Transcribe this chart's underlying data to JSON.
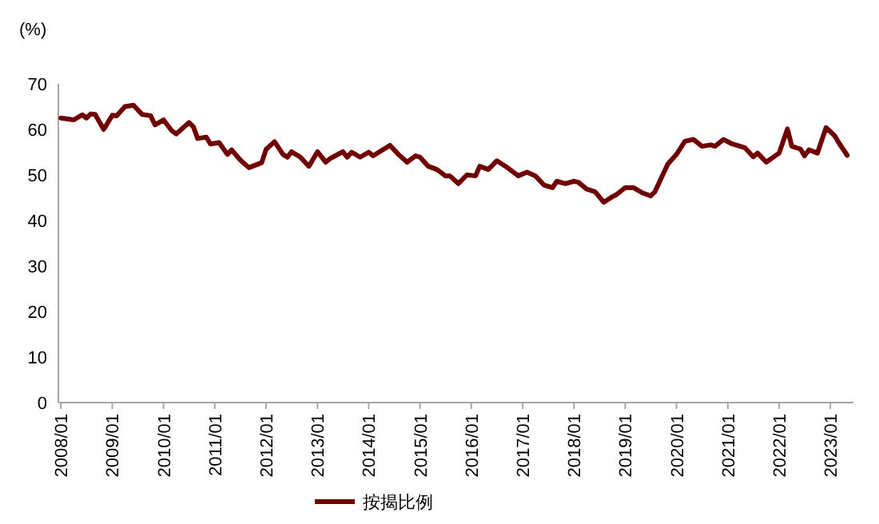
{
  "chart_data": {
    "type": "line",
    "ylabel": "(%)",
    "x": [
      "2008-01",
      "2008-04",
      "2008-06",
      "2008-07",
      "2008-08",
      "2008-09",
      "2008-11",
      "2009-01",
      "2009-02",
      "2009-04",
      "2009-06",
      "2009-08",
      "2009-10",
      "2009-11",
      "2010-01",
      "2010-03",
      "2010-04",
      "2010-07",
      "2010-08",
      "2010-09",
      "2010-11",
      "2010-12",
      "2011-02",
      "2011-04",
      "2011-05",
      "2011-07",
      "2011-09",
      "2011-12",
      "2012-01",
      "2012-03",
      "2012-05",
      "2012-06",
      "2012-07",
      "2012-09",
      "2012-11",
      "2013-01",
      "2013-03",
      "2013-04",
      "2013-07",
      "2013-08",
      "2013-09",
      "2013-11",
      "2014-01",
      "2014-02",
      "2014-06",
      "2014-08",
      "2014-10",
      "2014-12",
      "2015-01",
      "2015-03",
      "2015-05",
      "2015-07",
      "2015-08",
      "2015-10",
      "2015-12",
      "2016-02",
      "2016-03",
      "2016-05",
      "2016-07",
      "2016-09",
      "2016-12",
      "2017-02",
      "2017-04",
      "2017-06",
      "2017-08",
      "2017-09",
      "2017-11",
      "2018-01",
      "2018-02",
      "2018-04",
      "2018-06",
      "2018-08",
      "2018-10",
      "2018-11",
      "2019-01",
      "2019-03",
      "2019-05",
      "2019-07",
      "2019-08",
      "2019-10",
      "2019-11",
      "2020-01",
      "2020-03",
      "2020-05",
      "2020-07",
      "2020-09",
      "2020-10",
      "2020-12",
      "2021-02",
      "2021-05",
      "2021-07",
      "2021-08",
      "2021-10",
      "2022-01",
      "2022-03",
      "2022-04",
      "2022-06",
      "2022-07",
      "2022-08",
      "2022-10",
      "2022-12",
      "2023-02",
      "2023-03",
      "2023-05"
    ],
    "series": [
      {
        "name": "按揭比例",
        "color": "#700000",
        "values": [
          62.5,
          62.1,
          63.2,
          62.5,
          63.4,
          63.3,
          60.0,
          63.1,
          63.0,
          65.0,
          65.3,
          63.3,
          63.0,
          61.0,
          62.1,
          59.7,
          59.0,
          61.5,
          60.6,
          58.0,
          58.3,
          56.8,
          57.1,
          54.5,
          55.5,
          53.3,
          51.6,
          52.7,
          55.6,
          57.3,
          54.5,
          53.9,
          55.1,
          53.9,
          51.9,
          55.1,
          52.8,
          53.6,
          55.1,
          53.9,
          55.0,
          53.9,
          55.0,
          54.2,
          56.5,
          54.5,
          52.8,
          54.2,
          53.9,
          51.9,
          51.2,
          49.8,
          49.8,
          48.1,
          50.0,
          49.8,
          51.9,
          51.2,
          53.1,
          51.9,
          49.8,
          50.6,
          49.8,
          47.8,
          47.2,
          48.6,
          48.1,
          48.6,
          48.4,
          46.9,
          46.3,
          44.0,
          45.2,
          45.7,
          47.2,
          47.2,
          46.1,
          45.4,
          46.3,
          50.4,
          52.4,
          54.5,
          57.4,
          57.8,
          56.3,
          56.6,
          56.3,
          57.8,
          56.8,
          56.0,
          54.0,
          54.8,
          52.8,
          54.8,
          60.1,
          56.3,
          55.7,
          54.2,
          55.5,
          54.8,
          60.4,
          58.6,
          57.1,
          54.3
        ]
      }
    ],
    "xlim": [
      "2007-12-14",
      "2023-06-14"
    ],
    "ylim": [
      0,
      70
    ],
    "xticks": [
      {
        "value": "2008-01",
        "label": "2008/01"
      },
      {
        "value": "2009-01",
        "label": "2009/01"
      },
      {
        "value": "2010-01",
        "label": "2010/01"
      },
      {
        "value": "2011-01",
        "label": "2011/01"
      },
      {
        "value": "2012-01",
        "label": "2012/01"
      },
      {
        "value": "2013-01",
        "label": "2013/01"
      },
      {
        "value": "2014-01",
        "label": "2014/01"
      },
      {
        "value": "2015-01",
        "label": "2015/01"
      },
      {
        "value": "2016-01",
        "label": "2016/01"
      },
      {
        "value": "2017-01",
        "label": "2017/01"
      },
      {
        "value": "2018-01",
        "label": "2018/01"
      },
      {
        "value": "2019-01",
        "label": "2019/01"
      },
      {
        "value": "2020-01",
        "label": "2020/01"
      },
      {
        "value": "2021-01",
        "label": "2021/01"
      },
      {
        "value": "2022-01",
        "label": "2022/01"
      },
      {
        "value": "2023-01",
        "label": "2023/01"
      }
    ],
    "yticks": [
      0,
      10,
      20,
      30,
      40,
      50,
      60,
      70
    ],
    "legend": "bottom"
  }
}
